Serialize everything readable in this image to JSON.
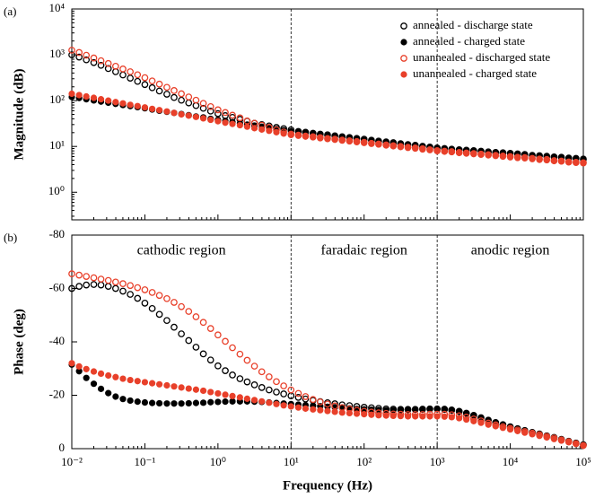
{
  "chart_data": [
    {
      "type": "scatter",
      "panel_label": "(a)",
      "ylabel": "Magnitude (dB)",
      "xlog": true,
      "ylog": true,
      "xlim": [
        0.01,
        100000
      ],
      "xticks": [
        0.01,
        0.1,
        1,
        10,
        100,
        1000,
        10000,
        100000
      ],
      "xtick_labels": false,
      "ylim": [
        0.25,
        10000
      ],
      "yticks": [
        {
          "value": 1,
          "label": "10⁰"
        },
        {
          "value": 10,
          "label": "10¹"
        },
        {
          "value": 100,
          "label": "10²"
        },
        {
          "value": 1000,
          "label": "10³"
        },
        {
          "value": 10000,
          "label": "10⁴"
        }
      ],
      "vlines": [
        10,
        1000
      ],
      "legend": "upper right",
      "x": [
        0.01,
        0.0126,
        0.0158,
        0.02,
        0.0251,
        0.0316,
        0.0398,
        0.0501,
        0.0631,
        0.0794,
        0.1,
        0.126,
        0.158,
        0.2,
        0.251,
        0.316,
        0.398,
        0.501,
        0.631,
        0.794,
        1,
        1.26,
        1.58,
        2,
        2.51,
        3.16,
        3.98,
        5.01,
        6.31,
        7.94,
        10,
        12.6,
        15.8,
        20,
        25.1,
        31.6,
        39.8,
        50.1,
        63.1,
        79.4,
        100,
        126,
        158,
        200,
        251,
        316,
        398,
        501,
        631,
        794,
        1000,
        1260,
        1580,
        2000,
        2510,
        3160,
        3980,
        5010,
        6310,
        7940,
        10000,
        12600,
        15800,
        20000,
        25100,
        31600,
        39800,
        50100,
        63100,
        79400,
        100000
      ],
      "series": [
        {
          "name": "annealed - discharge state",
          "color": "#000000",
          "marker": "open",
          "values": [
            1000,
            891,
            776,
            676,
            589,
            501,
            427,
            363,
            309,
            263,
            224,
            191,
            162,
            138,
            117,
            102,
            89,
            78,
            68,
            59,
            52,
            47,
            43,
            39,
            35.5,
            32,
            30,
            28,
            26,
            24.5,
            23,
            21.3,
            20.4,
            19.4,
            18.6,
            17.9,
            17.1,
            16.3,
            15.7,
            15.0,
            14.4,
            13.7,
            13.1,
            12.6,
            12.1,
            11.5,
            11.0,
            10.6,
            10.1,
            9.7,
            9.3,
            9.0,
            8.7,
            8.5,
            8.3,
            8.1,
            7.9,
            7.6,
            7.4,
            7.3,
            7.1,
            6.9,
            6.7,
            6.4,
            6.3,
            6.1,
            5.9,
            5.8,
            5.6,
            5.5,
            5.3
          ]
        },
        {
          "name": "annealed - charged state",
          "color": "#000000",
          "marker": "filled",
          "values": [
            120,
            114,
            107,
            101,
            95,
            90,
            85,
            80,
            76,
            72,
            68,
            64,
            60,
            57,
            54,
            51,
            48,
            45,
            43,
            40,
            38,
            36,
            34,
            32,
            30,
            28.5,
            27,
            25.4,
            24,
            22.6,
            21.4,
            20.5,
            19.6,
            18.7,
            17.9,
            17.2,
            16.4,
            15.7,
            15.1,
            14.4,
            13.8,
            13.2,
            12.6,
            12.1,
            11.6,
            11.1,
            10.6,
            10.2,
            9.7,
            9.3,
            8.9,
            8.7,
            8.4,
            8.2,
            8.0,
            7.8,
            7.6,
            7.3,
            7.1,
            7.0,
            6.8,
            6.6,
            6.4,
            6.2,
            6.1,
            5.9,
            5.7,
            5.6,
            5.4,
            5.3,
            5.1
          ]
        },
        {
          "name": "unannealed - discharged state",
          "color": "#e8402a",
          "marker": "open",
          "values": [
            1259,
            1122,
            977,
            851,
            741,
            646,
            562,
            490,
            427,
            367,
            316,
            269,
            229,
            195,
            166,
            141,
            120,
            102,
            87,
            74,
            63,
            55,
            48,
            42,
            36,
            32,
            29,
            26,
            23,
            20.7,
            18.6,
            17.6,
            16.9,
            16.3,
            15.6,
            14.9,
            14.4,
            13.8,
            13.3,
            12.8,
            12.3,
            11.7,
            11.3,
            10.8,
            10.4,
            10.0,
            9.6,
            9.3,
            8.9,
            8.5,
            8.1,
            7.9,
            7.7,
            7.4,
            7.2,
            7.0,
            6.8,
            6.6,
            6.4,
            6.2,
            6.0,
            5.8,
            5.7,
            5.5,
            5.3,
            5.2,
            4.9,
            4.8,
            4.6,
            4.5,
            4.4
          ]
        },
        {
          "name": "unannealed - charged state",
          "color": "#e8402a",
          "marker": "filled",
          "values": [
            141,
            132,
            123,
            115,
            107,
            100,
            93,
            87,
            81,
            76,
            71,
            66,
            62,
            58,
            54,
            50,
            47,
            44,
            41,
            38,
            35.5,
            33,
            31,
            29,
            27,
            25,
            23.4,
            21.9,
            20.4,
            19.1,
            17.8,
            17.1,
            16.4,
            15.8,
            15.1,
            14.5,
            14.0,
            13.4,
            12.9,
            12.4,
            11.9,
            11.4,
            11.0,
            10.5,
            10.1,
            9.7,
            9.3,
            9.0,
            8.6,
            8.3,
            7.9,
            7.7,
            7.5,
            7.2,
            7.0,
            6.8,
            6.6,
            6.4,
            6.2,
            6.0,
            5.8,
            5.6,
            5.5,
            5.3,
            5.1,
            5.0,
            4.8,
            4.7,
            4.5,
            4.4,
            4.3
          ]
        }
      ]
    },
    {
      "type": "scatter",
      "panel_label": "(b)",
      "ylabel": "Phase (deg)",
      "xlabel": "Frequency (Hz)",
      "xlog": true,
      "ylog": false,
      "xlim": [
        0.01,
        100000
      ],
      "xticks": [
        {
          "value": 0.01,
          "label": "10⁻²"
        },
        {
          "value": 0.1,
          "label": "10⁻¹"
        },
        {
          "value": 1,
          "label": "10⁰"
        },
        {
          "value": 10,
          "label": "10¹"
        },
        {
          "value": 100,
          "label": "10²"
        },
        {
          "value": 1000,
          "label": "10³"
        },
        {
          "value": 10000,
          "label": "10⁴"
        },
        {
          "value": 100000,
          "label": "10⁵"
        }
      ],
      "xtick_labels": true,
      "ylim": [
        0,
        -80
      ],
      "yticks": [
        -80,
        -60,
        -40,
        -20,
        0
      ],
      "vlines": [
        10,
        1000
      ],
      "annotations": [
        "cathodic region",
        "faradaic region",
        "anodic region"
      ],
      "x": [
        0.01,
        0.0126,
        0.0158,
        0.02,
        0.0251,
        0.0316,
        0.0398,
        0.0501,
        0.0631,
        0.0794,
        0.1,
        0.126,
        0.158,
        0.2,
        0.251,
        0.316,
        0.398,
        0.501,
        0.631,
        0.794,
        1,
        1.26,
        1.58,
        2,
        2.51,
        3.16,
        3.98,
        5.01,
        6.31,
        7.94,
        10,
        12.6,
        15.8,
        20,
        25.1,
        31.6,
        39.8,
        50.1,
        63.1,
        79.4,
        100,
        126,
        158,
        200,
        251,
        316,
        398,
        501,
        631,
        794,
        1000,
        1260,
        1580,
        2000,
        2510,
        3160,
        3980,
        5010,
        6310,
        7940,
        10000,
        12600,
        15800,
        20000,
        25100,
        31600,
        39800,
        50100,
        63100,
        79400,
        100000
      ],
      "series": [
        {
          "color": "#000000",
          "marker": "open",
          "values": [
            -60,
            -60.8,
            -61.3,
            -61.5,
            -61.3,
            -60.8,
            -60,
            -59,
            -57.8,
            -56.3,
            -54.5,
            -52.5,
            -50.3,
            -48,
            -45.5,
            -43,
            -40.5,
            -38,
            -35.5,
            -33.2,
            -31,
            -29.2,
            -27.6,
            -26.2,
            -25,
            -23.9,
            -22.9,
            -22,
            -21.2,
            -20.5,
            -19.8,
            -19.2,
            -18.6,
            -18.1,
            -17.6,
            -17.2,
            -16.8,
            -16.4,
            -16.1,
            -15.8,
            -15.5,
            -15.3,
            -15.1,
            -14.9,
            -14.8,
            -14.7,
            -14.7,
            -14.7,
            -14.8,
            -14.9,
            -14.9,
            -14.8,
            -14.5,
            -14.0,
            -13.3,
            -12.5,
            -11.6,
            -10.7,
            -9.8,
            -9.0,
            -8.2,
            -7.5,
            -6.8,
            -6.1,
            -5.5,
            -4.8,
            -4.2,
            -3.5,
            -2.8,
            -2.1,
            -1.5
          ]
        },
        {
          "color": "#000000",
          "marker": "filled",
          "values": [
            -31.5,
            -29,
            -26.5,
            -24.3,
            -22.4,
            -20.8,
            -19.5,
            -18.6,
            -18,
            -17.6,
            -17.3,
            -17.1,
            -17,
            -16.9,
            -16.9,
            -16.9,
            -17,
            -17.1,
            -17.2,
            -17.4,
            -17.5,
            -17.6,
            -17.7,
            -17.7,
            -17.7,
            -17.6,
            -17.5,
            -17.3,
            -17.1,
            -16.9,
            -16.7,
            -16.5,
            -16.3,
            -16.1,
            -15.9,
            -15.7,
            -15.5,
            -15.3,
            -15.1,
            -14.9,
            -14.7,
            -14.6,
            -14.5,
            -14.4,
            -14.4,
            -14.4,
            -14.5,
            -14.6,
            -14.7,
            -14.8,
            -14.8,
            -14.6,
            -14.3,
            -13.8,
            -13.1,
            -12.3,
            -11.5,
            -10.6,
            -9.7,
            -8.9,
            -8.1,
            -7.4,
            -6.7,
            -6.0,
            -5.3,
            -4.7,
            -4.0,
            -3.3,
            -2.6,
            -1.9,
            -1.3
          ]
        },
        {
          "color": "#e8402a",
          "marker": "open",
          "values": [
            -65.5,
            -65,
            -64.5,
            -64,
            -63.5,
            -63,
            -62.4,
            -61.8,
            -61.1,
            -60.3,
            -59.5,
            -58.5,
            -57.4,
            -56.2,
            -54.8,
            -53.2,
            -51.4,
            -49.4,
            -47.3,
            -45,
            -42.6,
            -40.2,
            -37.8,
            -35.4,
            -33.1,
            -30.9,
            -28.8,
            -26.9,
            -25.1,
            -23.5,
            -22,
            -20.7,
            -19.5,
            -18.4,
            -17.5,
            -16.7,
            -16,
            -15.4,
            -14.9,
            -14.4,
            -14,
            -13.7,
            -13.4,
            -13.2,
            -13,
            -12.9,
            -12.8,
            -12.8,
            -12.8,
            -12.9,
            -12.9,
            -12.9,
            -12.7,
            -12.3,
            -11.8,
            -11.1,
            -10.4,
            -9.6,
            -8.9,
            -8.2,
            -7.6,
            -7.0,
            -6.4,
            -5.8,
            -5.2,
            -4.6,
            -4.0,
            -3.3,
            -2.6,
            -1.9,
            -1.2
          ]
        },
        {
          "color": "#e8402a",
          "marker": "filled",
          "values": [
            -32,
            -30.8,
            -29.8,
            -28.9,
            -28.1,
            -27.4,
            -26.8,
            -26.2,
            -25.7,
            -25.3,
            -24.9,
            -24.5,
            -24.1,
            -23.7,
            -23.3,
            -22.9,
            -22.5,
            -22.1,
            -21.7,
            -21.2,
            -20.7,
            -20.2,
            -19.7,
            -19.2,
            -18.7,
            -18.2,
            -17.7,
            -17.2,
            -16.7,
            -16.2,
            -15.8,
            -15.4,
            -15.0,
            -14.7,
            -14.4,
            -14.1,
            -13.8,
            -13.5,
            -13.3,
            -13.1,
            -12.9,
            -12.7,
            -12.5,
            -12.4,
            -12.3,
            -12.2,
            -12.1,
            -12.1,
            -12.1,
            -12.1,
            -12.1,
            -12.0,
            -11.8,
            -11.4,
            -10.9,
            -10.3,
            -9.7,
            -9.0,
            -8.4,
            -7.8,
            -7.2,
            -6.6,
            -6.0,
            -5.4,
            -4.8,
            -4.2,
            -3.6,
            -3.0,
            -2.4,
            -1.8,
            -1.1
          ]
        }
      ]
    }
  ]
}
